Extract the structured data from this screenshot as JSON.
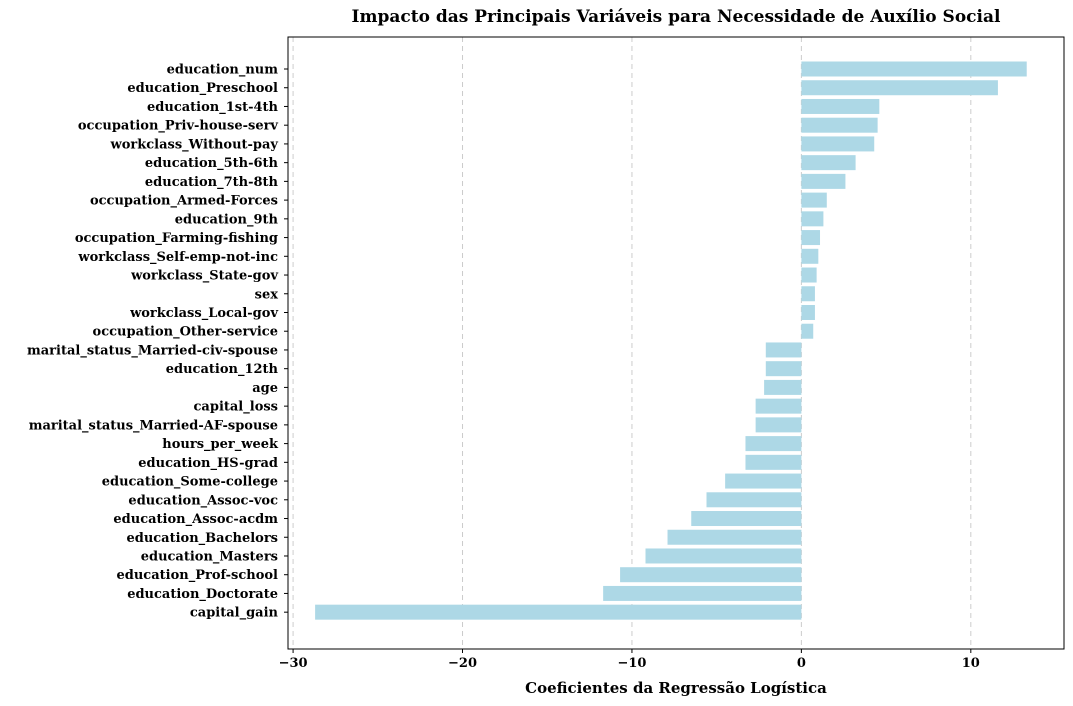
{
  "chart_data": {
    "type": "bar",
    "orientation": "horizontal",
    "title": "Impacto das Principais Variáveis para Necessidade de Auxílio Social",
    "xlabel": "Coeficientes da Regressão Logística",
    "ylabel": "",
    "xlim": [
      -30.3,
      15.5
    ],
    "xticks": [
      -30,
      -20,
      -10,
      0,
      10
    ],
    "xtick_labels": [
      "−30",
      "−20",
      "−10",
      "0",
      "10"
    ],
    "grid": "x, dashed",
    "bar_color": "#add8e6",
    "categories": [
      "education_num",
      "education_Preschool",
      "education_1st-4th",
      "occupation_Priv-house-serv",
      "workclass_Without-pay",
      "education_5th-6th",
      "education_7th-8th",
      "occupation_Armed-Forces",
      "education_9th",
      "occupation_Farming-fishing",
      "workclass_Self-emp-not-inc",
      "workclass_State-gov",
      "sex",
      "workclass_Local-gov",
      "occupation_Other-service",
      "marital_status_Married-civ-spouse",
      "education_12th",
      "age",
      "capital_loss",
      "marital_status_Married-AF-spouse",
      "hours_per_week",
      "education_HS-grad",
      "education_Some-college",
      "education_Assoc-voc",
      "education_Assoc-acdm",
      "education_Bachelors",
      "education_Masters",
      "education_Prof-school",
      "education_Doctorate",
      "capital_gain"
    ],
    "values": [
      13.3,
      11.6,
      4.6,
      4.5,
      4.3,
      3.2,
      2.6,
      1.5,
      1.3,
      1.1,
      1.0,
      0.9,
      0.8,
      0.8,
      0.7,
      -2.1,
      -2.1,
      -2.2,
      -2.7,
      -2.7,
      -3.3,
      -3.3,
      -4.5,
      -5.6,
      -6.5,
      -7.9,
      -9.2,
      -10.7,
      -11.7,
      -28.7
    ]
  }
}
